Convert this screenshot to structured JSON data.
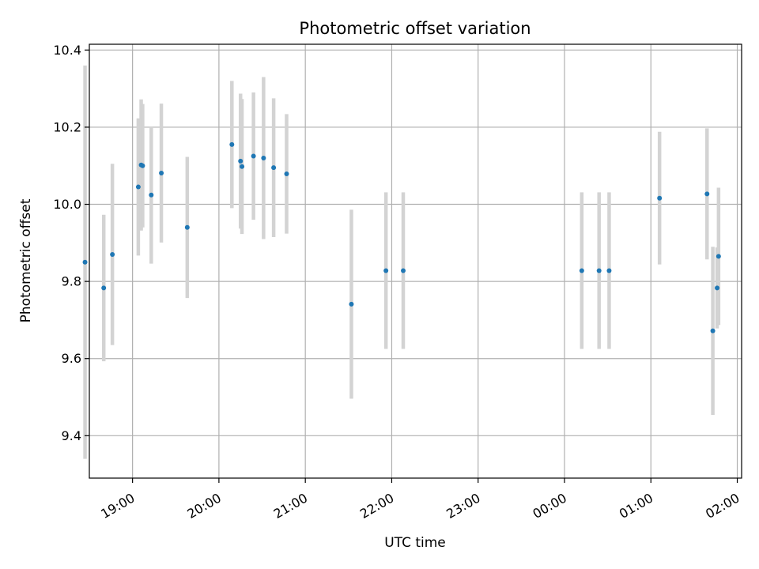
{
  "chart_data": {
    "type": "scatter",
    "title": "Photometric offset variation",
    "xlabel": "UTC time",
    "ylabel": "Photometric offset",
    "x_axis_kind": "time",
    "xlim": [
      "18:30",
      "26:03"
    ],
    "ylim": [
      9.29,
      10.415
    ],
    "grid": true,
    "x_ticks": [
      {
        "t": "19:00",
        "label": "19:00"
      },
      {
        "t": "20:00",
        "label": "20:00"
      },
      {
        "t": "21:00",
        "label": "21:00"
      },
      {
        "t": "22:00",
        "label": "22:00"
      },
      {
        "t": "23:00",
        "label": "23:00"
      },
      {
        "t": "24:00",
        "label": "00:00"
      },
      {
        "t": "25:00",
        "label": "01:00"
      },
      {
        "t": "26:00",
        "label": "02:00"
      }
    ],
    "y_ticks": [
      9.4,
      9.6,
      9.8,
      10.0,
      10.2,
      10.4
    ],
    "y_tick_labels": [
      "9.4",
      "9.6",
      "9.8",
      "10.0",
      "10.2",
      "10.4"
    ],
    "colors": {
      "point": "#1f77b4",
      "errorbar": "#d3d3d3",
      "grid": "#b0b0b0"
    },
    "points": [
      {
        "t": "18:27",
        "y": 9.85,
        "err": 0.51
      },
      {
        "t": "18:40",
        "y": 9.783,
        "err": 0.19
      },
      {
        "t": "18:46",
        "y": 9.87,
        "err": 0.235
      },
      {
        "t": "19:04",
        "y": 10.045,
        "err": 0.178
      },
      {
        "t": "19:06",
        "y": 10.102,
        "err": 0.17
      },
      {
        "t": "19:07",
        "y": 10.1,
        "err": 0.16
      },
      {
        "t": "19:13",
        "y": 10.024,
        "err": 0.178
      },
      {
        "t": "19:20",
        "y": 10.081,
        "err": 0.18
      },
      {
        "t": "19:38",
        "y": 9.94,
        "err": 0.183
      },
      {
        "t": "20:09",
        "y": 10.155,
        "err": 0.165
      },
      {
        "t": "20:15",
        "y": 10.112,
        "err": 0.175
      },
      {
        "t": "20:16",
        "y": 10.098,
        "err": 0.175
      },
      {
        "t": "20:24",
        "y": 10.125,
        "err": 0.165
      },
      {
        "t": "20:31",
        "y": 10.12,
        "err": 0.21
      },
      {
        "t": "20:38",
        "y": 10.095,
        "err": 0.18
      },
      {
        "t": "20:47",
        "y": 10.079,
        "err": 0.155
      },
      {
        "t": "21:32",
        "y": 9.741,
        "err": 0.245
      },
      {
        "t": "21:56",
        "y": 9.828,
        "err": 0.203
      },
      {
        "t": "22:08",
        "y": 9.828,
        "err": 0.203
      },
      {
        "t": "24:12",
        "y": 9.828,
        "err": 0.203
      },
      {
        "t": "24:24",
        "y": 9.828,
        "err": 0.203
      },
      {
        "t": "24:31",
        "y": 9.828,
        "err": 0.203
      },
      {
        "t": "25:06",
        "y": 10.016,
        "err": 0.172
      },
      {
        "t": "25:39",
        "y": 10.027,
        "err": 0.17
      },
      {
        "t": "25:43",
        "y": 9.672,
        "err": 0.218
      },
      {
        "t": "25:46",
        "y": 9.783,
        "err": 0.105
      },
      {
        "t": "25:47",
        "y": 9.865,
        "err": 0.178
      }
    ]
  }
}
